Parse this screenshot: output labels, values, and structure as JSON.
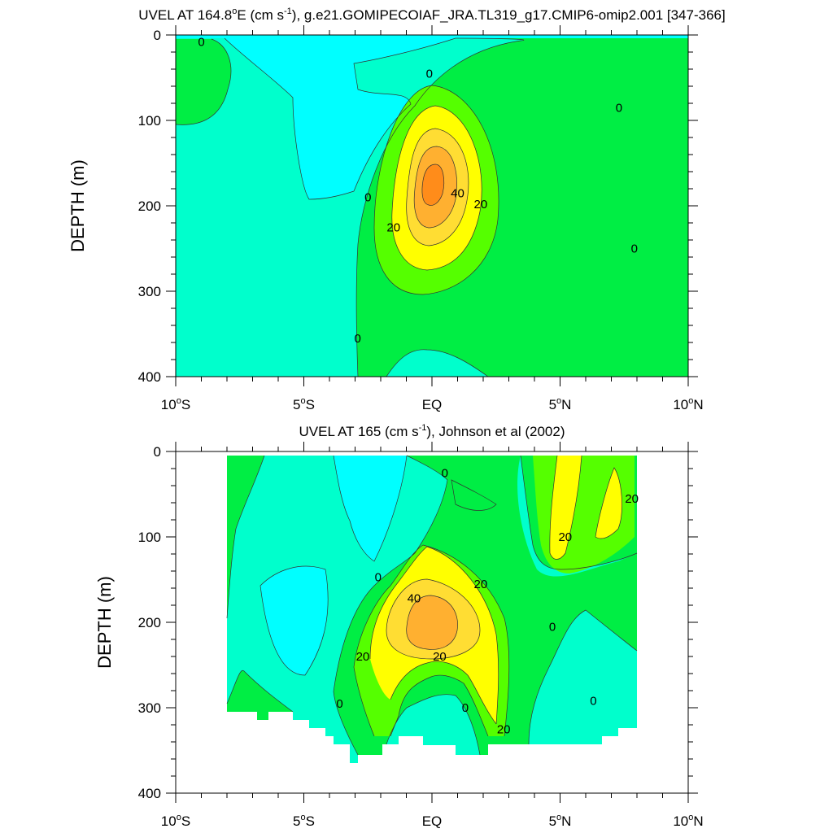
{
  "colors": {
    "cyan": "#00FFFF",
    "aqua": "#00FFCC",
    "green": "#00EE44",
    "lime": "#55FF00",
    "yellow": "#FFFF00",
    "gold": "#FFDD33",
    "orange": "#FFB030",
    "deep_orange": "#FF8C1A"
  },
  "chart_data": [
    {
      "type": "contour",
      "title": "UVEL AT 164.8°E (cm s⁻¹), g.e21.GOMIPECOIAF_JRA.TL319_g17.CMIP6-omip2.001 [347-366]",
      "title_parts": {
        "a": "UVEL AT 164.8",
        "deg": "o",
        "b": "E (cm s",
        "sup": "-1",
        "c": "), g.e21.GOMIPECOIAF_JRA.TL319_g17.CMIP6-omip2.001 [347-366]"
      },
      "ylabel": "DEPTH (m)",
      "xlim": [
        -10,
        10
      ],
      "ylim": [
        0,
        400
      ],
      "yticks": [
        "0",
        "100",
        "200",
        "300",
        "400"
      ],
      "xticks": [
        {
          "value": -10,
          "num": "10",
          "deg": "o",
          "hemi": "S"
        },
        {
          "value": -5,
          "num": "5",
          "deg": "o",
          "hemi": "S"
        },
        {
          "value": 0,
          "num": "EQ",
          "deg": "",
          "hemi": ""
        },
        {
          "value": 5,
          "num": "5",
          "deg": "o",
          "hemi": "N"
        },
        {
          "value": 10,
          "num": "10",
          "deg": "o",
          "hemi": "N"
        }
      ],
      "contour_levels": [
        0,
        10,
        20,
        30,
        40,
        50
      ],
      "core_max": {
        "lat": 0.0,
        "depth": 175
      },
      "contour_labels": [
        {
          "text": "0",
          "lat": -9.0,
          "depth": 8
        },
        {
          "text": "0",
          "lat": -0.1,
          "depth": 45
        },
        {
          "text": "0",
          "lat": 7.3,
          "depth": 85
        },
        {
          "text": "0",
          "lat": -2.5,
          "depth": 190
        },
        {
          "text": "0",
          "lat": 7.9,
          "depth": 250
        },
        {
          "text": "0",
          "lat": -2.9,
          "depth": 355
        },
        {
          "text": "40",
          "lat": 1.0,
          "depth": 185
        },
        {
          "text": "20",
          "lat": 1.9,
          "depth": 198
        },
        {
          "text": "20",
          "lat": -1.5,
          "depth": 225
        }
      ]
    },
    {
      "type": "contour",
      "title": "UVEL AT 165 (cm s⁻¹), Johnson et al (2002)",
      "title_parts": {
        "a": "UVEL AT 165 (cm s",
        "sup": "-1",
        "c": "), Johnson et al (2002)"
      },
      "ylabel": "DEPTH (m)",
      "xlim": [
        -10,
        10
      ],
      "ylim": [
        0,
        400
      ],
      "yticks": [
        "0",
        "100",
        "200",
        "300",
        "400"
      ],
      "xticks": [
        {
          "value": -10,
          "num": "10",
          "deg": "o",
          "hemi": "S"
        },
        {
          "value": -5,
          "num": "5",
          "deg": "o",
          "hemi": "S"
        },
        {
          "value": 0,
          "num": "EQ",
          "deg": "",
          "hemi": ""
        },
        {
          "value": 5,
          "num": "5",
          "deg": "o",
          "hemi": "N"
        },
        {
          "value": 10,
          "num": "10",
          "deg": "o",
          "hemi": "N"
        }
      ],
      "data_extent": {
        "lat": [
          -8,
          8
        ],
        "depth": [
          0,
          365
        ]
      },
      "contour_levels": [
        0,
        10,
        20,
        30,
        40
      ],
      "core_max": {
        "lat": 0.0,
        "depth": 185
      },
      "contour_labels": [
        {
          "text": "0",
          "lat": 0.5,
          "depth": 25
        },
        {
          "text": "0",
          "lat": -2.1,
          "depth": 147
        },
        {
          "text": "0",
          "lat": 4.7,
          "depth": 205
        },
        {
          "text": "0",
          "lat": -3.6,
          "depth": 295
        },
        {
          "text": "0",
          "lat": 1.3,
          "depth": 300
        },
        {
          "text": "0",
          "lat": 6.3,
          "depth": 292
        },
        {
          "text": "40",
          "lat": -0.7,
          "depth": 172
        },
        {
          "text": "20",
          "lat": 1.9,
          "depth": 155
        },
        {
          "text": "20",
          "lat": 0.3,
          "depth": 240
        },
        {
          "text": "20",
          "lat": -2.7,
          "depth": 240
        },
        {
          "text": "20",
          "lat": 2.8,
          "depth": 325
        },
        {
          "text": "20",
          "lat": 7.8,
          "depth": 55
        },
        {
          "text": "20",
          "lat": 5.2,
          "depth": 100
        }
      ]
    }
  ]
}
